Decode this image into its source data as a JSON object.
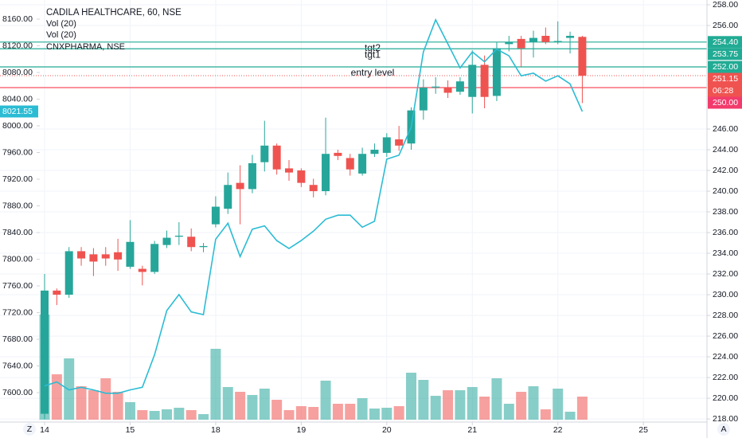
{
  "chart_data": {
    "type": "candlestick",
    "title": "CADILA HEALTHCARE, 60, NSE",
    "indicators": [
      "Vol (20)",
      "Vol (20)"
    ],
    "up_color": "#26a69a",
    "down_color": "#ef5350",
    "open": [
      218.5,
      230.4,
      230.0,
      234.2,
      233.9,
      233.9,
      234.1,
      232.7,
      232.5,
      232.2,
      234.8,
      235.6,
      235.6,
      234.6,
      236.8,
      238.3,
      240.8,
      240.2,
      242.8,
      244.4,
      242.2,
      242.0,
      240.6,
      240.0,
      243.7,
      243.2,
      241.7,
      243.6,
      243.7,
      245.0,
      244.6,
      247.8,
      250.0,
      250.0,
      249.6,
      249.1,
      252.2,
      249.2,
      254.2,
      254.7,
      254.4,
      255.0,
      254.4,
      254.8,
      254.9
    ],
    "high": [
      232.0,
      230.6,
      234.6,
      234.6,
      234.5,
      234.6,
      235.4,
      237.2,
      232.8,
      235.2,
      236.2,
      237.0,
      236.4,
      235.0,
      239.5,
      241.8,
      242.5,
      243.5,
      246.8,
      244.6,
      243.0,
      242.2,
      241.2,
      247.1,
      244.0,
      243.6,
      244.2,
      244.6,
      245.6,
      246.3,
      248.1,
      250.8,
      251.0,
      250.7,
      251.0,
      253.6,
      253.1,
      254.4,
      255.0,
      255.0,
      255.5,
      255.8,
      256.4,
      255.4,
      255.0
    ],
    "low": [
      218.0,
      229.0,
      229.7,
      232.8,
      231.8,
      232.8,
      232.3,
      232.5,
      230.9,
      232.0,
      234.5,
      234.8,
      234.2,
      234.1,
      236.5,
      237.8,
      236.8,
      239.8,
      241.9,
      241.6,
      241.0,
      240.4,
      239.4,
      239.6,
      243.0,
      241.5,
      241.5,
      243.3,
      243.3,
      243.9,
      244.0,
      246.9,
      249.4,
      249.0,
      249.3,
      247.5,
      248.0,
      248.7,
      253.5,
      252.0,
      252.9,
      254.2,
      254.2,
      253.3,
      248.5
    ],
    "close": [
      230.4,
      230.0,
      234.2,
      233.5,
      233.2,
      233.5,
      233.4,
      235.1,
      232.2,
      234.9,
      235.5,
      235.7,
      234.6,
      234.7,
      238.5,
      240.6,
      240.2,
      242.7,
      244.4,
      242.1,
      241.8,
      240.8,
      240.0,
      243.6,
      243.4,
      242.1,
      243.6,
      244.0,
      245.2,
      244.4,
      247.8,
      250.0,
      250.1,
      249.5,
      250.6,
      252.2,
      249.1,
      253.8,
      254.4,
      253.8,
      254.8,
      254.4,
      254.5,
      255.0,
      251.15
    ],
    "volume": [
      132,
      57,
      77,
      42,
      37,
      52,
      35,
      22,
      12,
      11,
      13,
      15,
      12,
      7,
      89,
      41,
      35,
      31,
      39,
      25,
      12,
      17,
      16,
      49,
      20,
      20,
      27,
      14,
      15,
      17,
      59,
      50,
      30,
      37,
      37,
      41,
      29,
      52,
      20,
      35,
      42,
      13,
      39,
      10,
      29
    ],
    "series": [
      {
        "name": "CNXPHARMA, NSE",
        "color": "#2bbcd4",
        "axis": "y",
        "values": [
          7610,
          7616,
          7604,
          7608,
          7604,
          7599,
          7599,
          7604,
          7608,
          7657,
          7723,
          7747,
          7721,
          7717,
          7830,
          7854,
          7804,
          7845,
          7850,
          7828,
          7816,
          7828,
          7842,
          7860,
          7866,
          7866,
          7848,
          7857,
          7950,
          7956,
          7998,
          8111,
          8159,
          8123,
          8087,
          8111,
          8096,
          8115,
          8105,
          8075,
          8079,
          8067,
          8075,
          8063,
          8021.55
        ]
      }
    ],
    "ylim": [
      7555.8,
      8188.7
    ],
    "yticks": [
      {
        "value": 8160,
        "label": "8160.00"
      },
      {
        "value": 8120,
        "label": "8120.00"
      },
      {
        "value": 8080,
        "label": "8080.00"
      },
      {
        "value": 8040,
        "label": "8040.00"
      },
      {
        "value": 8000,
        "label": "8000.00"
      },
      {
        "value": 7960,
        "label": "7960.00"
      },
      {
        "value": 7920,
        "label": "7920.00"
      },
      {
        "value": 7880,
        "label": "7880.00"
      },
      {
        "value": 7840,
        "label": "7840.00"
      },
      {
        "value": 7800,
        "label": "7800.00"
      },
      {
        "value": 7760,
        "label": "7760.00"
      },
      {
        "value": 7720,
        "label": "7720.00"
      },
      {
        "value": 7680,
        "label": "7680.00"
      },
      {
        "value": 7640,
        "label": "7640.00"
      },
      {
        "value": 7600,
        "label": "7600.00"
      }
    ],
    "y_tag": {
      "value": 8021.55,
      "label": "8021.55"
    },
    "y2lim": [
      217.7,
      258.46
    ],
    "y2ticks": [
      {
        "value": 258,
        "label": "258.00"
      },
      {
        "value": 256,
        "label": "256.00"
      },
      {
        "value": 246,
        "label": "246.00"
      },
      {
        "value": 244,
        "label": "244.00"
      },
      {
        "value": 242,
        "label": "242.00"
      },
      {
        "value": 240,
        "label": "240.00"
      },
      {
        "value": 238,
        "label": "238.00"
      },
      {
        "value": 236,
        "label": "236.00"
      },
      {
        "value": 234,
        "label": "234.00"
      },
      {
        "value": 232,
        "label": "232.00"
      },
      {
        "value": 230,
        "label": "230.00"
      },
      {
        "value": 228,
        "label": "228.00"
      },
      {
        "value": 226,
        "label": "226.00"
      },
      {
        "value": 224,
        "label": "224.00"
      },
      {
        "value": 222,
        "label": "222.00"
      },
      {
        "value": 220,
        "label": "220.00"
      },
      {
        "value": 218,
        "label": "218.00"
      }
    ],
    "xticks": [
      {
        "value": 0,
        "label": "14"
      },
      {
        "value": 7,
        "label": "15"
      },
      {
        "value": 14,
        "label": "18"
      },
      {
        "value": 21,
        "label": "19"
      },
      {
        "value": 28,
        "label": "20"
      },
      {
        "value": 35,
        "label": "21"
      },
      {
        "value": 42,
        "label": "22"
      },
      {
        "value": 49,
        "label": "25"
      }
    ],
    "hlines": [
      {
        "value": 254.4,
        "label": "tgt2",
        "color": "#22ab94"
      },
      {
        "value": 253.75,
        "label": "tgt1",
        "color": "#22ab94"
      },
      {
        "value": 252.0,
        "label": "entry level",
        "color": "#22ab94"
      },
      {
        "value": 250.0,
        "color": "#f7525f"
      }
    ],
    "price_tags": [
      {
        "value": 254.4,
        "label": "254.40",
        "color": "#22ab94"
      },
      {
        "value": 253.75,
        "label": "253.75",
        "color": "#22ab94"
      },
      {
        "value": 252.0,
        "label": "252.00",
        "color": "#22ab94"
      },
      {
        "value": 251.15,
        "label": "251.15",
        "color": "#ef5350",
        "countdown": "06:28"
      },
      {
        "value": 250.0,
        "label": "250.00",
        "color": "#f23b6c"
      }
    ],
    "corner_labels": [
      "Z",
      "A"
    ],
    "grid": true
  }
}
